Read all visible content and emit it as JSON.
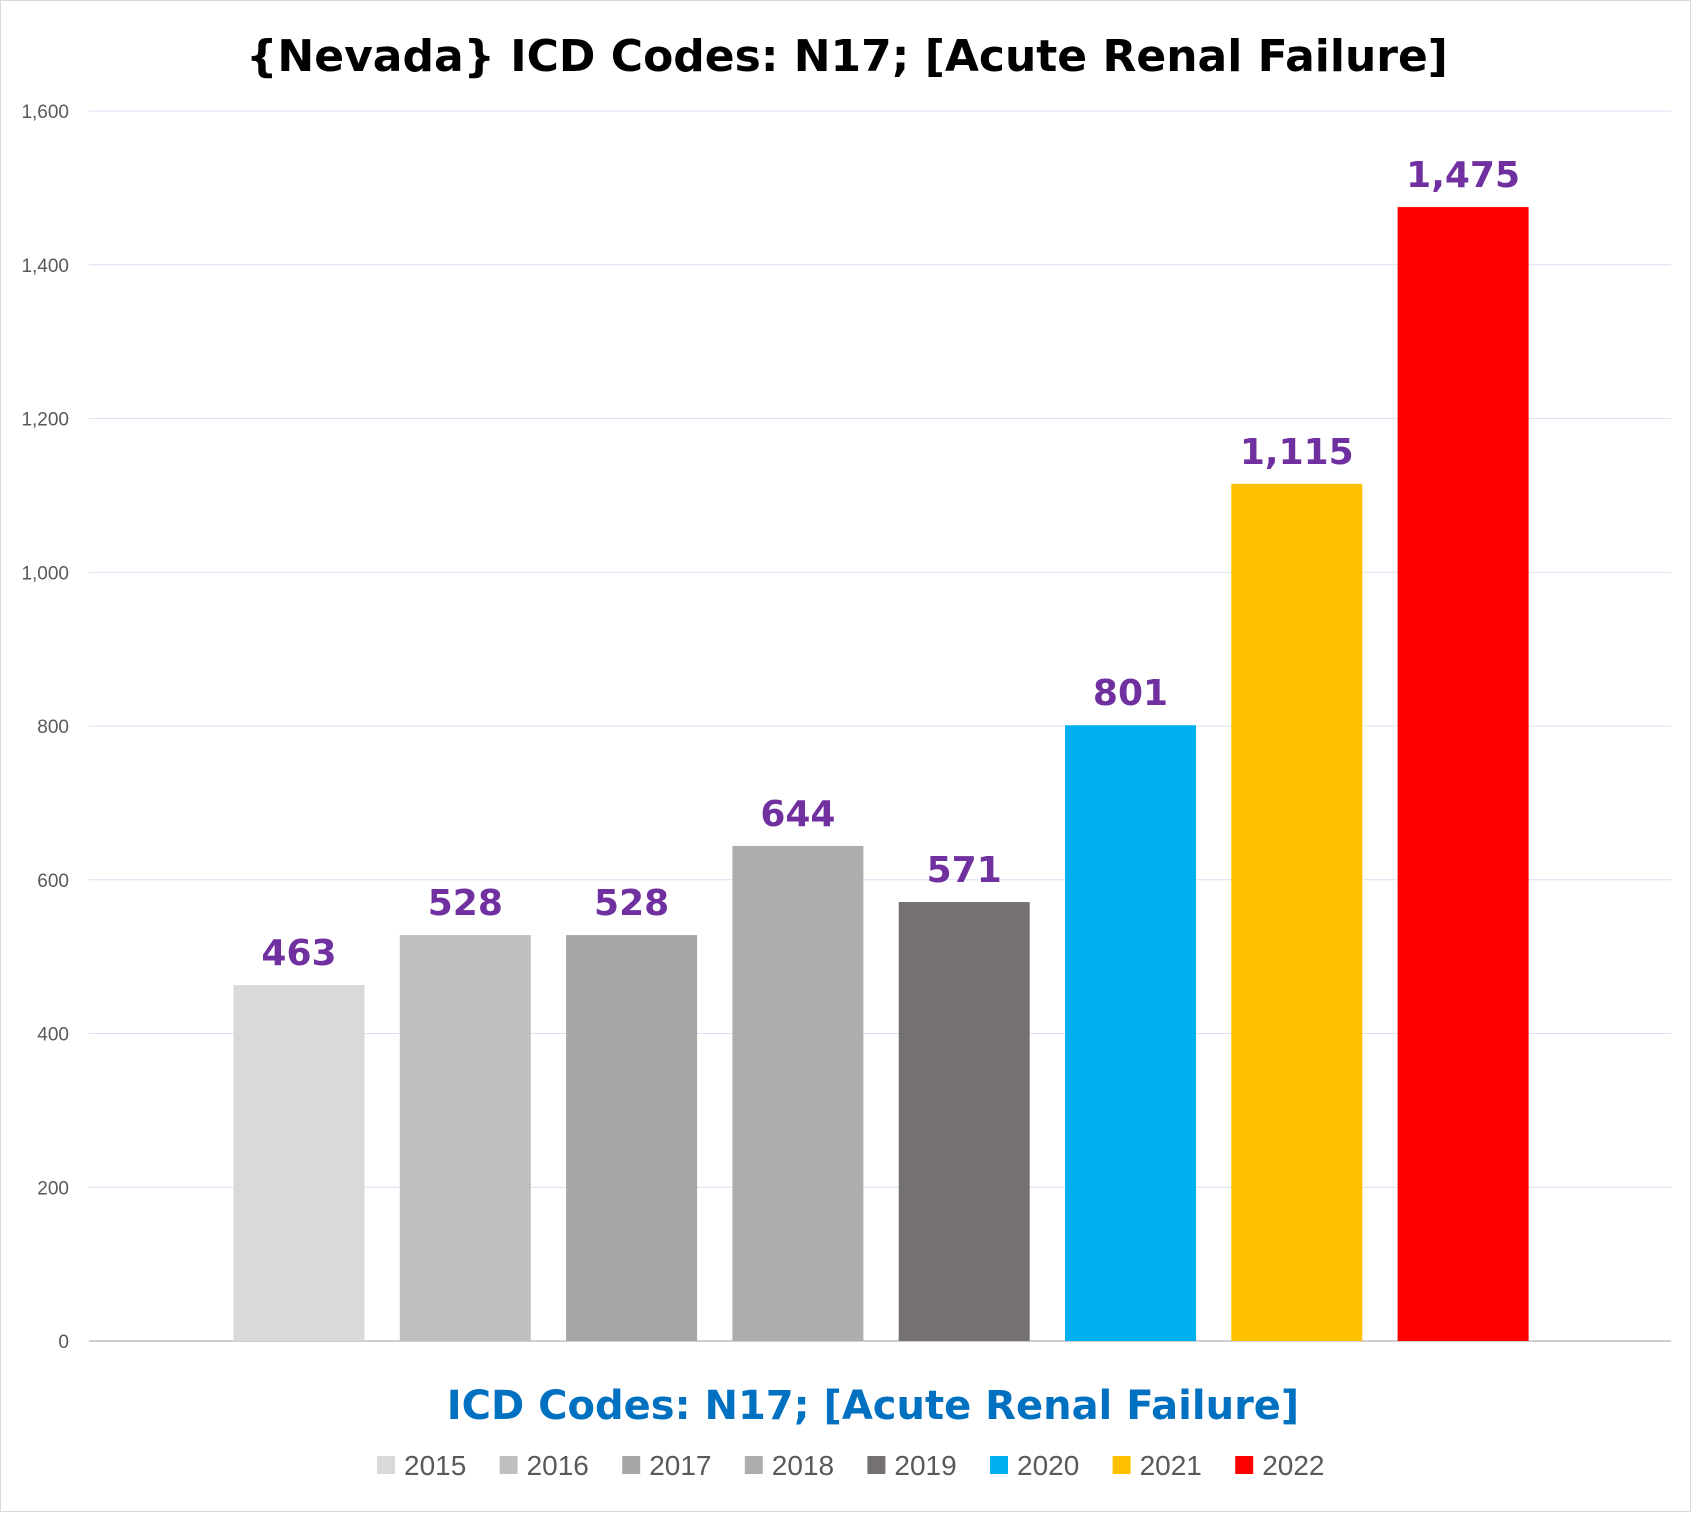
{
  "chart_data": {
    "type": "bar",
    "title": "{Nevada}  ICD Codes: N17;  [Acute Renal Failure]",
    "xlabel": "ICD Codes: N17;  [Acute Renal Failure]",
    "ylabel": "",
    "ylim": [
      0,
      1600
    ],
    "yticks": [
      "0",
      "200",
      "400",
      "600",
      "800",
      "1,000",
      "1,200",
      "1,400",
      "1,600"
    ],
    "grid": true,
    "legend_position": "bottom",
    "series": [
      {
        "name": "2015",
        "value": 463,
        "label": "463",
        "color": "#d9d9d9"
      },
      {
        "name": "2016",
        "value": 528,
        "label": "528",
        "color": "#bfbfbf"
      },
      {
        "name": "2017",
        "value": 528,
        "label": "528",
        "color": "#a6a6a6"
      },
      {
        "name": "2018",
        "value": 644,
        "label": "644",
        "color": "#afadab"
      },
      {
        "name": "2019",
        "value": 571,
        "label": "571",
        "color": "#767171"
      },
      {
        "name": "2020",
        "value": 801,
        "label": "801",
        "color": "#00b0f0"
      },
      {
        "name": "2021",
        "value": 1115,
        "label": "1,115",
        "color": "#ffc000"
      },
      {
        "name": "2022",
        "value": 1475,
        "label": "1,475",
        "color": "#ff0000"
      }
    ],
    "colors": {
      "data_label": "#7030a0",
      "axis_title": "#0070c0",
      "gridline": "#d9e1f2"
    }
  }
}
